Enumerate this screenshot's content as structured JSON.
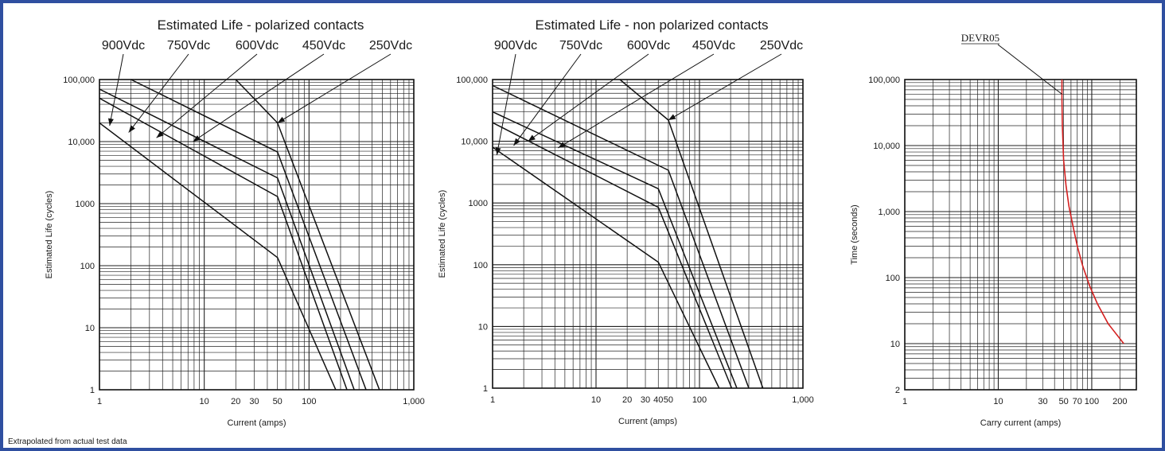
{
  "footnote": "Extrapolated from actual test data",
  "chart_data": [
    {
      "type": "line",
      "title": "Estimated Life - polarized contacts",
      "xlabel": "Current (amps)",
      "ylabel": "Estimated Life (cycles)",
      "xscale": "log",
      "yscale": "log",
      "xlim": [
        1,
        1000
      ],
      "ylim": [
        1,
        100000
      ],
      "grid": true,
      "xticks": [
        {
          "v": 1,
          "label": "1"
        },
        {
          "v": 10,
          "label": "10"
        },
        {
          "v": 20,
          "label": "20"
        },
        {
          "v": 30,
          "label": "30"
        },
        {
          "v": 50,
          "label": "50"
        },
        {
          "v": 100,
          "label": "100"
        },
        {
          "v": 1000,
          "label": "1,000"
        }
      ],
      "yticks": [
        {
          "v": 1,
          "label": "1"
        },
        {
          "v": 10,
          "label": "10"
        },
        {
          "v": 100,
          "label": "100"
        },
        {
          "v": 1000,
          "label": "1000"
        },
        {
          "v": 10000,
          "label": "10,000"
        },
        {
          "v": 100000,
          "label": "100,000"
        }
      ],
      "series": [
        {
          "name": "900Vdc",
          "x": [
            1,
            50,
            180
          ],
          "y": [
            20000,
            135,
            1
          ],
          "callout_at": [
            1.25,
            18000
          ]
        },
        {
          "name": "750Vdc",
          "x": [
            1,
            50,
            230
          ],
          "y": [
            50000,
            1300,
            1
          ],
          "callout_at": [
            1.9,
            14000
          ]
        },
        {
          "name": "600Vdc",
          "x": [
            1,
            50,
            270
          ],
          "y": [
            70000,
            2600,
            1
          ],
          "callout_at": [
            3.5,
            11500
          ]
        },
        {
          "name": "450Vdc",
          "x": [
            2,
            50,
            350
          ],
          "y": [
            100000,
            6800,
            1
          ],
          "callout_at": [
            7.8,
            10000
          ]
        },
        {
          "name": "250Vdc",
          "x": [
            20,
            50,
            470
          ],
          "y": [
            100000,
            20000,
            1
          ],
          "callout_at": [
            50,
            20000
          ]
        }
      ]
    },
    {
      "type": "line",
      "title": "Estimated Life - non polarized contacts",
      "xlabel": "Current (amps)",
      "ylabel": "Estimated Life (cycles)",
      "xscale": "log",
      "yscale": "log",
      "xlim": [
        1,
        1000
      ],
      "ylim": [
        1,
        100000
      ],
      "grid": true,
      "xticks": [
        {
          "v": 1,
          "label": "1"
        },
        {
          "v": 10,
          "label": "10"
        },
        {
          "v": 20,
          "label": "20"
        },
        {
          "v": 30,
          "label": "30"
        },
        {
          "v": 40,
          "label": "40"
        },
        {
          "v": 50,
          "label": "50"
        },
        {
          "v": 100,
          "label": "100"
        },
        {
          "v": 1000,
          "label": "1,000"
        }
      ],
      "yticks": [
        {
          "v": 1,
          "label": "1"
        },
        {
          "v": 10,
          "label": "10"
        },
        {
          "v": 100,
          "label": "100"
        },
        {
          "v": 1000,
          "label": "1000"
        },
        {
          "v": 10000,
          "label": "10,000"
        },
        {
          "v": 100000,
          "label": "100,000"
        }
      ],
      "series": [
        {
          "name": "900Vdc",
          "x": [
            1,
            40,
            155
          ],
          "y": [
            8000,
            110,
            1
          ],
          "callout_at": [
            1.1,
            6000
          ]
        },
        {
          "name": "750Vdc",
          "x": [
            1,
            40,
            205
          ],
          "y": [
            20000,
            850,
            1
          ],
          "callout_at": [
            1.6,
            8500
          ]
        },
        {
          "name": "600Vdc",
          "x": [
            1,
            40,
            230
          ],
          "y": [
            30000,
            1700,
            1
          ],
          "callout_at": [
            2.2,
            10000
          ]
        },
        {
          "name": "450Vdc",
          "x": [
            1,
            50,
            300
          ],
          "y": [
            80000,
            3400,
            1
          ],
          "callout_at": [
            4.3,
            7800
          ]
        },
        {
          "name": "250Vdc",
          "x": [
            17,
            50,
            410
          ],
          "y": [
            100000,
            22000,
            1
          ],
          "callout_at": [
            50,
            22000
          ]
        }
      ]
    },
    {
      "type": "line",
      "xlabel": "Carry current (amps)",
      "ylabel": "Time (seconds)",
      "xscale": "log",
      "yscale": "log",
      "xlim": [
        1,
        300
      ],
      "ylim": [
        2,
        100000
      ],
      "grid": true,
      "xticks": [
        {
          "v": 1,
          "label": "1"
        },
        {
          "v": 10,
          "label": "10"
        },
        {
          "v": 30,
          "label": "30"
        },
        {
          "v": 50,
          "label": "50"
        },
        {
          "v": 70,
          "label": "70"
        },
        {
          "v": 100,
          "label": "100"
        },
        {
          "v": 200,
          "label": "200"
        }
      ],
      "yticks": [
        {
          "v": 2,
          "label": "2"
        },
        {
          "v": 10,
          "label": "10"
        },
        {
          "v": 100,
          "label": "100"
        },
        {
          "v": 1000,
          "label": "1,000"
        },
        {
          "v": 10000,
          "label": "10,000"
        },
        {
          "v": 100000,
          "label": "100,000"
        }
      ],
      "series": [
        {
          "name": "DEVR05",
          "color": "#d42020",
          "x": [
            48,
            48,
            48.5,
            50,
            53,
            57,
            63,
            70,
            80,
            95,
            115,
            150,
            220
          ],
          "y": [
            100000,
            50000,
            20000,
            6000,
            2500,
            1200,
            600,
            300,
            150,
            75,
            40,
            20,
            10
          ],
          "callout_at": [
            48,
            60000
          ]
        }
      ]
    }
  ]
}
